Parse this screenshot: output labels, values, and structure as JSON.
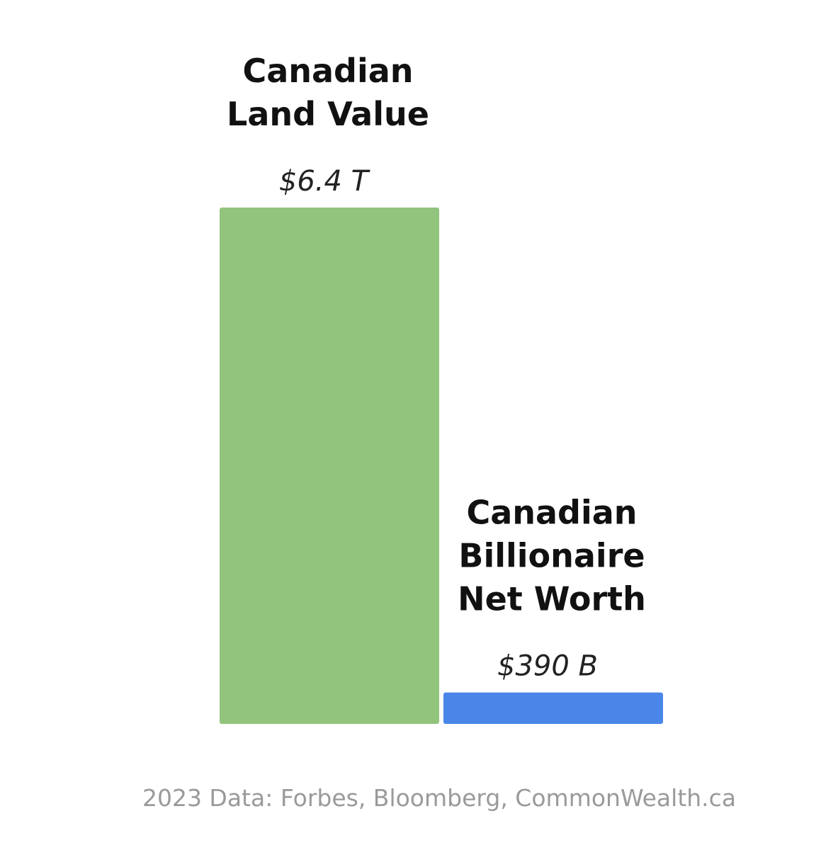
{
  "chart_data": {
    "type": "bar",
    "categories": [
      "Canadian Land Value",
      "Canadian Billionaire Net Worth"
    ],
    "category_label_lines": [
      [
        "Canadian",
        "Land Value"
      ],
      [
        "Canadian",
        "Billionaire",
        "Net Worth"
      ]
    ],
    "values": [
      6400,
      390
    ],
    "value_unit": "billion CAD",
    "value_labels": [
      "$6.4 T",
      "$390 B"
    ],
    "colors": [
      "#93c47d",
      "#4a86e8"
    ],
    "title": "",
    "xlabel": "",
    "ylabel": "",
    "ylim": [
      0,
      6400
    ],
    "grid": false,
    "legend": "none",
    "source": "2023 Data: Forbes, Bloomberg, CommonWealth.ca"
  }
}
